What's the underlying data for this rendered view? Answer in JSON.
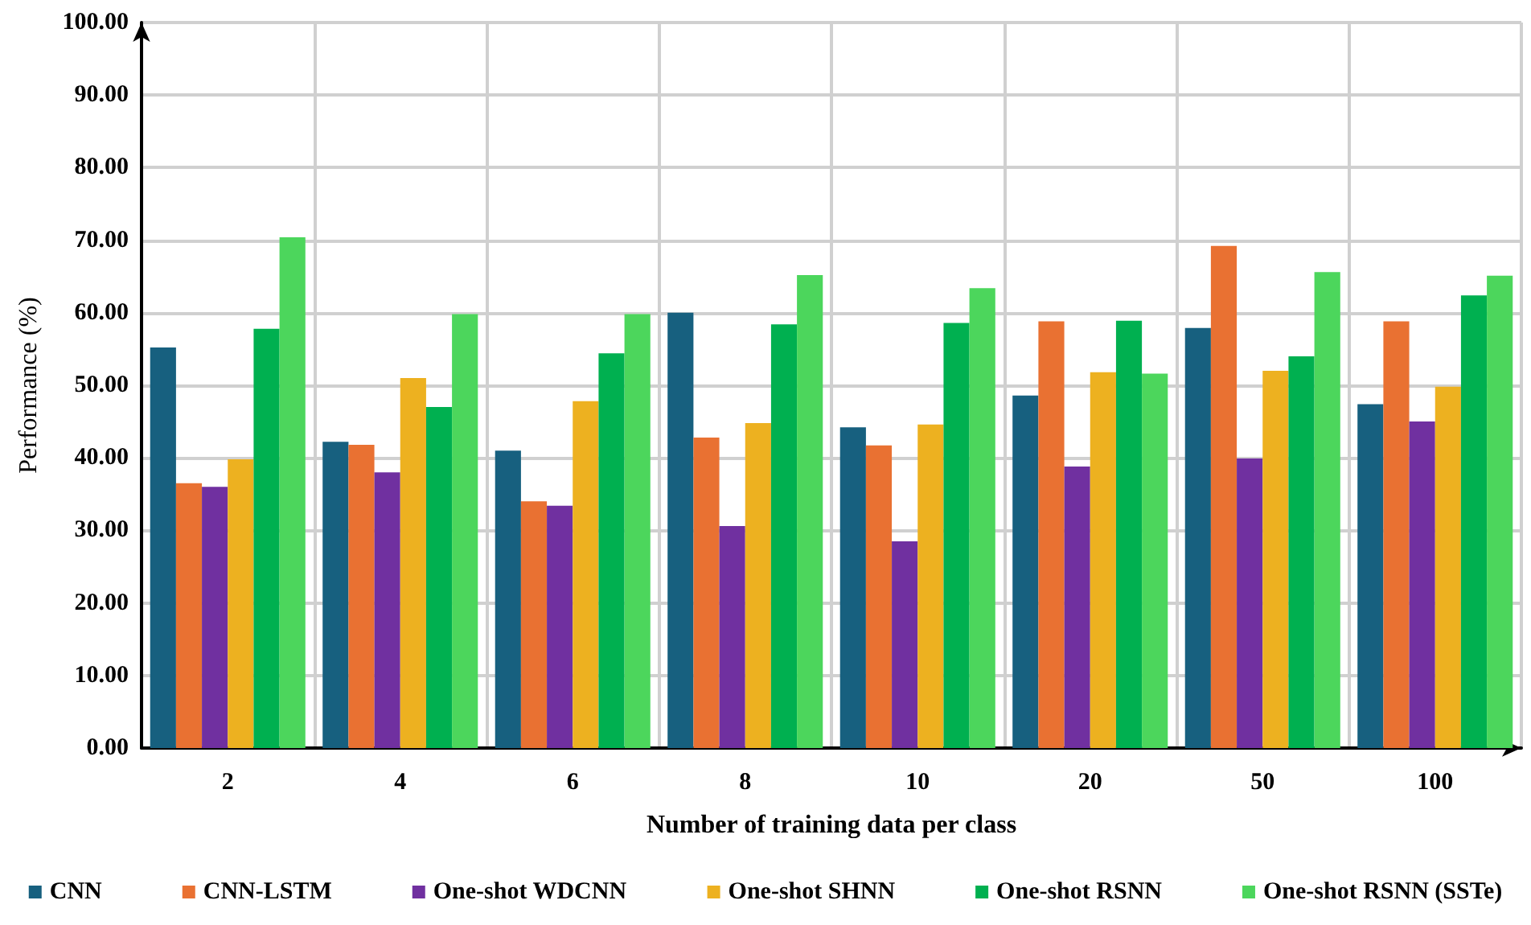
{
  "chart_data": {
    "type": "bar",
    "xlabel": "Number of training data per class",
    "ylabel": "Performance (%)",
    "categories": [
      "2",
      "4",
      "6",
      "8",
      "10",
      "20",
      "50",
      "100"
    ],
    "series": [
      {
        "name": "CNN",
        "color": "#17607f",
        "values": [
          55.2,
          42.2,
          41.0,
          60.0,
          44.2,
          48.6,
          57.9,
          47.4
        ]
      },
      {
        "name": "CNN-LSTM",
        "color": "#e97132",
        "values": [
          36.5,
          41.8,
          34.0,
          42.8,
          41.7,
          58.8,
          69.2,
          58.8
        ]
      },
      {
        "name": "One-shot WDCNN",
        "color": "#7030a0",
        "values": [
          36.0,
          38.0,
          33.4,
          30.6,
          28.5,
          38.8,
          39.9,
          45.0
        ]
      },
      {
        "name": "One-shot SHNN",
        "color": "#edb120",
        "values": [
          39.8,
          51.0,
          47.8,
          44.8,
          44.6,
          51.8,
          52.0,
          49.8
        ]
      },
      {
        "name": "One-shot RSNN",
        "color": "#00b050",
        "values": [
          57.8,
          47.0,
          54.4,
          58.4,
          58.6,
          58.9,
          54.0,
          62.4
        ]
      },
      {
        "name": "One-shot RSNN (SSTe)",
        "color": "#4cd65c",
        "values": [
          70.4,
          59.8,
          59.8,
          65.2,
          63.4,
          51.6,
          65.6,
          65.1
        ]
      }
    ],
    "ylim": [
      0,
      100
    ],
    "yticks": [
      {
        "value": 0,
        "label": "0.00"
      },
      {
        "value": 10,
        "label": "10.00"
      },
      {
        "value": 20,
        "label": "20.00"
      },
      {
        "value": 30,
        "label": "30.00"
      },
      {
        "value": 40,
        "label": "40.00"
      },
      {
        "value": 50,
        "label": "50.00"
      },
      {
        "value": 60,
        "label": "60.00"
      },
      {
        "value": 70,
        "label": "70.00"
      },
      {
        "value": 80,
        "label": "80.00"
      },
      {
        "value": 90,
        "label": "90.00"
      },
      {
        "value": 100,
        "label": "100.00"
      }
    ],
    "grid": true,
    "legend": "bottom"
  }
}
